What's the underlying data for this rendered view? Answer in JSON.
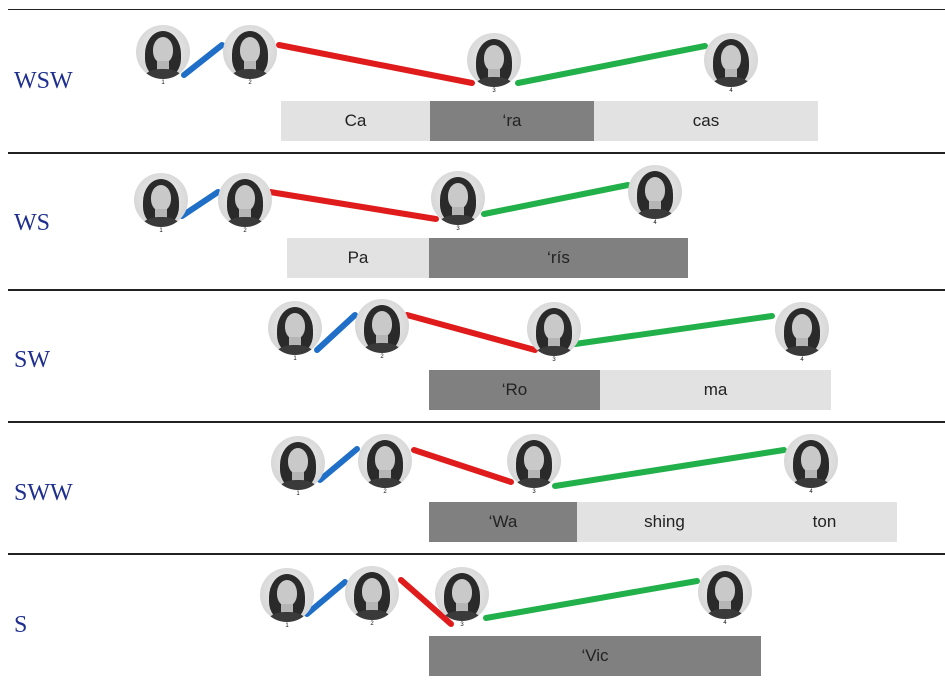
{
  "lines": {
    "blue": "#1f6fc8",
    "red": "#e01b1b",
    "green": "#22b04b"
  },
  "panels": [
    {
      "id": "wsw",
      "label": "WSW",
      "syllables": [
        {
          "text": "Ca",
          "stressed": false
        },
        {
          "text": "‘ra",
          "stressed": true
        },
        {
          "text": "cas",
          "stressed": false
        }
      ],
      "faces": [
        {
          "number": "1",
          "icon": "face-photo-icon"
        },
        {
          "number": "2",
          "icon": "face-photo-icon"
        },
        {
          "number": "3",
          "icon": "face-photo-icon"
        },
        {
          "number": "4",
          "icon": "face-photo-icon"
        }
      ]
    },
    {
      "id": "ws",
      "label": "WS",
      "syllables": [
        {
          "text": "Pa",
          "stressed": false
        },
        {
          "text": "‘rís",
          "stressed": true
        }
      ],
      "faces": [
        {
          "number": "1",
          "icon": "face-photo-icon"
        },
        {
          "number": "2",
          "icon": "face-photo-icon"
        },
        {
          "number": "3",
          "icon": "face-photo-icon"
        },
        {
          "number": "4",
          "icon": "face-photo-icon"
        }
      ]
    },
    {
      "id": "sw",
      "label": "SW",
      "syllables": [
        {
          "text": "‘Ro",
          "stressed": true
        },
        {
          "text": "ma",
          "stressed": false
        }
      ],
      "faces": [
        {
          "number": "1",
          "icon": "face-photo-icon"
        },
        {
          "number": "2",
          "icon": "face-photo-icon"
        },
        {
          "number": "3",
          "icon": "face-photo-icon"
        },
        {
          "number": "4",
          "icon": "face-photo-icon"
        }
      ]
    },
    {
      "id": "sww",
      "label": "SWW",
      "syllables": [
        {
          "text": "‘Wa",
          "stressed": true
        },
        {
          "text": "shing",
          "stressed": false
        },
        {
          "text": "ton",
          "stressed": false
        }
      ],
      "faces": [
        {
          "number": "1",
          "icon": "face-photo-icon"
        },
        {
          "number": "2",
          "icon": "face-photo-icon"
        },
        {
          "number": "3",
          "icon": "face-photo-icon"
        },
        {
          "number": "4",
          "icon": "face-photo-icon"
        }
      ]
    },
    {
      "id": "s",
      "label": "S",
      "syllables": [
        {
          "text": "‘Vic",
          "stressed": true
        }
      ],
      "faces": [
        {
          "number": "1",
          "icon": "face-photo-icon"
        },
        {
          "number": "2",
          "icon": "face-photo-icon"
        },
        {
          "number": "3",
          "icon": "face-photo-icon"
        },
        {
          "number": "4",
          "icon": "face-photo-icon"
        }
      ]
    }
  ]
}
